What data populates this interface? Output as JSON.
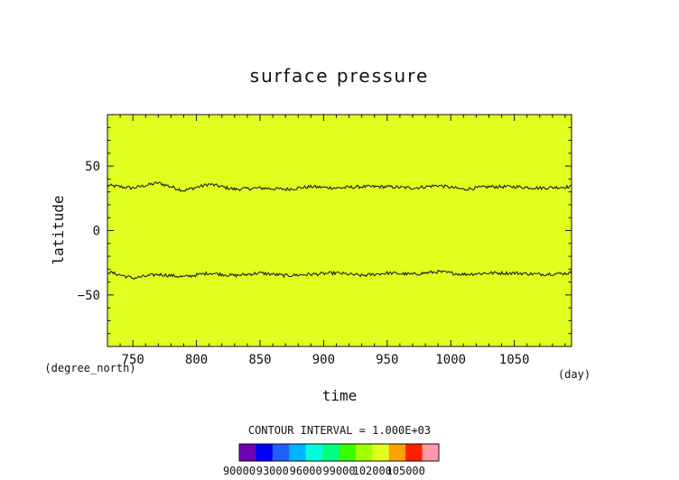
{
  "chart_data": {
    "type": "contour",
    "title": "surface pressure",
    "xlabel": "time",
    "ylabel": "latitude",
    "x_unit": "(day)",
    "y_unit": "(degree_north)",
    "xlim": [
      730,
      1095
    ],
    "ylim": [
      -90,
      90
    ],
    "x_ticks": [
      750,
      800,
      850,
      900,
      950,
      1000,
      1050
    ],
    "y_ticks": [
      50,
      0,
      -50
    ],
    "field_color": "#dfff1f",
    "contour_interval_label": "CONTOUR INTERVAL = 1.000E+03",
    "contours": [
      {
        "x": [
          730,
          750,
          770,
          790,
          810,
          830,
          850,
          870,
          890,
          910,
          930,
          950,
          970,
          990,
          1010,
          1030,
          1050,
          1070,
          1095
        ],
        "y": [
          35,
          33,
          37,
          31,
          36,
          32,
          33,
          32,
          34,
          33,
          34,
          34,
          33,
          35,
          32,
          34,
          34,
          33,
          34
        ]
      },
      {
        "x": [
          730,
          750,
          770,
          790,
          810,
          830,
          850,
          870,
          890,
          910,
          930,
          950,
          970,
          990,
          1010,
          1030,
          1050,
          1070,
          1095
        ],
        "y": [
          -32,
          -37,
          -34,
          -36,
          -33,
          -35,
          -33,
          -35,
          -34,
          -33,
          -35,
          -33,
          -34,
          -32,
          -34,
          -33,
          -33,
          -34,
          -33
        ]
      }
    ],
    "colorbar": {
      "colors": [
        "#6f00b5",
        "#0000ff",
        "#2060ff",
        "#00b4ff",
        "#00ffd8",
        "#00ff80",
        "#3aff00",
        "#a0ff00",
        "#dfff1f",
        "#ffa000",
        "#ff2000",
        "#ff9aa8"
      ],
      "labels": [
        "90000",
        "93000",
        "96000",
        "99000",
        "102000",
        "105000"
      ]
    }
  }
}
